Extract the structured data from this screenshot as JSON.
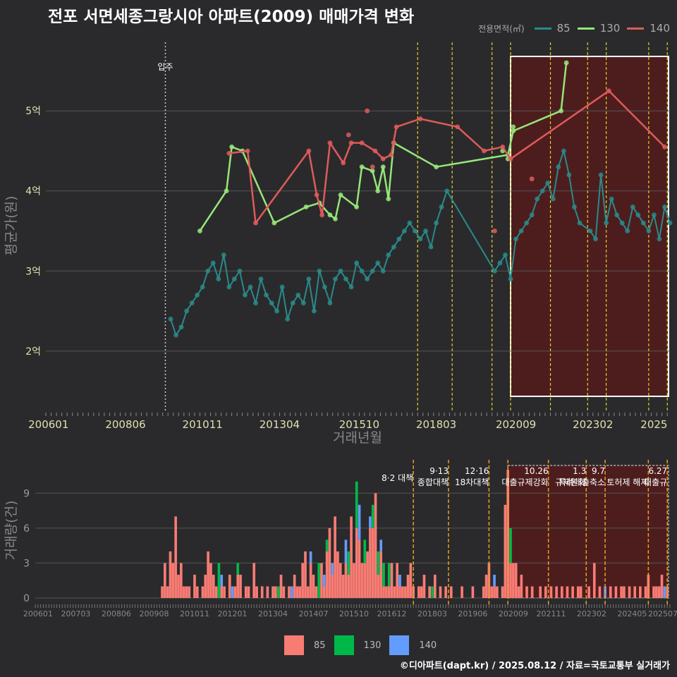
{
  "header": {
    "title": "전포 서면세종그랑시아 아파트(2009) 매매가격 변화",
    "legend_label": "전용면적(㎡)",
    "footer": "©디아파트(dapt.kr) / 2025.08.12 / 자료=국토교통부 실거래가"
  },
  "colors": {
    "bg": "#2a2a2c",
    "s85_line": "#2a8a8a",
    "s130_line": "#96e67a",
    "s140_line": "#e05a5a",
    "bar85": "#f87c74",
    "bar130": "#00b84a",
    "bar140": "#639cff",
    "highlight": "#5a1a1a",
    "vline": "#e0d02a"
  },
  "chart_data": [
    {
      "type": "line",
      "title": "전포 서면세종그랑시아 아파트(2009) 매매가격 변화",
      "xlabel": "거래년월",
      "ylabel": "평균가(원)",
      "x_range": [
        "2005-12",
        "2025-07"
      ],
      "ylim": [
        1.25,
        5.9
      ],
      "yticks": [
        {
          "v": 2,
          "label": "2억"
        },
        {
          "v": 3,
          "label": "3억"
        },
        {
          "v": 4,
          "label": "4억"
        },
        {
          "v": 5,
          "label": "5억"
        }
      ],
      "xticks": [
        "200601",
        "200806",
        "201011",
        "201304",
        "201510",
        "201803",
        "202009",
        "202302",
        "2025"
      ],
      "move_in": {
        "date": "2009-09",
        "label": "입주"
      },
      "policy_lines": [
        "2017-08",
        "2018-09",
        "2019-12",
        "2020-07",
        "2021-10",
        "2022-12",
        "2023-07",
        "2024-11",
        "2025-06"
      ],
      "highlight": {
        "from": "2020-07",
        "to": "2025-07"
      },
      "legend": [
        "85",
        "130",
        "140"
      ],
      "series": [
        {
          "name": "85",
          "line": [
            [
              "2009-11",
              2.4
            ],
            [
              "2010-01",
              2.2
            ],
            [
              "2010-03",
              2.3
            ],
            [
              "2010-05",
              2.5
            ],
            [
              "2010-07",
              2.6
            ],
            [
              "2010-09",
              2.7
            ],
            [
              "2010-11",
              2.8
            ],
            [
              "2011-01",
              3.0
            ],
            [
              "2011-03",
              3.1
            ],
            [
              "2011-05",
              2.9
            ],
            [
              "2011-07",
              3.2
            ],
            [
              "2011-09",
              2.8
            ],
            [
              "2011-11",
              2.9
            ],
            [
              "2012-01",
              3.0
            ],
            [
              "2012-03",
              2.7
            ],
            [
              "2012-05",
              2.8
            ],
            [
              "2012-07",
              2.6
            ],
            [
              "2012-09",
              2.9
            ],
            [
              "2012-11",
              2.7
            ],
            [
              "2013-01",
              2.6
            ],
            [
              "2013-03",
              2.5
            ],
            [
              "2013-05",
              2.8
            ],
            [
              "2013-07",
              2.4
            ],
            [
              "2013-09",
              2.6
            ],
            [
              "2013-11",
              2.7
            ],
            [
              "2014-01",
              2.6
            ],
            [
              "2014-03",
              2.9
            ],
            [
              "2014-05",
              2.5
            ],
            [
              "2014-07",
              3.0
            ],
            [
              "2014-09",
              2.8
            ],
            [
              "2014-11",
              2.6
            ],
            [
              "2015-01",
              2.9
            ],
            [
              "2015-03",
              3.0
            ],
            [
              "2015-05",
              2.9
            ],
            [
              "2015-07",
              2.8
            ],
            [
              "2015-09",
              3.1
            ],
            [
              "2015-11",
              3.0
            ],
            [
              "2016-01",
              2.9
            ],
            [
              "2016-03",
              3.0
            ],
            [
              "2016-05",
              3.1
            ],
            [
              "2016-07",
              3.0
            ],
            [
              "2016-09",
              3.2
            ],
            [
              "2016-11",
              3.3
            ],
            [
              "2017-01",
              3.4
            ],
            [
              "2017-03",
              3.5
            ],
            [
              "2017-05",
              3.6
            ],
            [
              "2017-07",
              3.5
            ],
            [
              "2017-09",
              3.4
            ],
            [
              "2017-11",
              3.5
            ],
            [
              "2018-01",
              3.3
            ],
            [
              "2018-03",
              3.6
            ],
            [
              "2018-05",
              3.8
            ],
            [
              "2018-07",
              4.0
            ],
            [
              "2020-01",
              3.0
            ],
            [
              "2020-03",
              3.1
            ],
            [
              "2020-05",
              3.2
            ],
            [
              "2020-07",
              2.9
            ],
            [
              "2020-09",
              3.4
            ],
            [
              "2020-11",
              3.5
            ],
            [
              "2021-01",
              3.6
            ],
            [
              "2021-03",
              3.7
            ],
            [
              "2021-05",
              3.9
            ],
            [
              "2021-07",
              4.0
            ],
            [
              "2021-09",
              4.1
            ],
            [
              "2021-11",
              3.9
            ],
            [
              "2022-01",
              4.3
            ],
            [
              "2022-03",
              4.5
            ],
            [
              "2022-05",
              4.2
            ],
            [
              "2022-07",
              3.8
            ],
            [
              "2022-09",
              3.6
            ],
            [
              "2023-01",
              3.5
            ],
            [
              "2023-03",
              3.4
            ],
            [
              "2023-05",
              4.2
            ],
            [
              "2023-07",
              3.6
            ],
            [
              "2023-09",
              3.9
            ],
            [
              "2023-11",
              3.7
            ],
            [
              "2024-01",
              3.6
            ],
            [
              "2024-03",
              3.5
            ],
            [
              "2024-05",
              3.8
            ],
            [
              "2024-07",
              3.7
            ],
            [
              "2024-09",
              3.6
            ],
            [
              "2024-11",
              3.5
            ],
            [
              "2025-01",
              3.7
            ],
            [
              "2025-03",
              3.4
            ],
            [
              "2025-05",
              3.8
            ],
            [
              "2025-07",
              3.6
            ]
          ]
        },
        {
          "name": "130",
          "line": [
            [
              "2010-10",
              3.5
            ],
            [
              "2011-08",
              4.0
            ],
            [
              "2011-10",
              4.55
            ],
            [
              "2012-02",
              4.5
            ],
            [
              "2013-02",
              3.6
            ],
            [
              "2014-02",
              3.8
            ],
            [
              "2014-07",
              3.85
            ],
            [
              "2014-11",
              3.7
            ],
            [
              "2015-01",
              3.65
            ],
            [
              "2015-03",
              3.95
            ],
            [
              "2015-09",
              3.8
            ],
            [
              "2015-11",
              4.3
            ],
            [
              "2016-03",
              4.25
            ],
            [
              "2016-05",
              4.0
            ],
            [
              "2016-07",
              4.3
            ],
            [
              "2016-09",
              3.9
            ],
            [
              "2016-11",
              4.6
            ],
            [
              "2018-03",
              4.3
            ],
            [
              "2020-06",
              4.45
            ],
            [
              "2020-08",
              4.75
            ],
            [
              "2022-02",
              5.0
            ],
            [
              "2022-04",
              5.6
            ]
          ],
          "points": [
            [
              "2020-06",
              4.4
            ],
            [
              "2020-08",
              4.8
            ],
            [
              "2020-04",
              4.5
            ]
          ]
        },
        {
          "name": "140",
          "line": [
            [
              "2011-09",
              4.47
            ],
            [
              "2012-04",
              4.5
            ],
            [
              "2012-07",
              3.6
            ],
            [
              "2014-03",
              4.5
            ],
            [
              "2014-06",
              3.95
            ],
            [
              "2014-08",
              3.7
            ],
            [
              "2014-11",
              4.6
            ],
            [
              "2015-04",
              4.35
            ],
            [
              "2015-07",
              4.6
            ],
            [
              "2015-11",
              4.6
            ],
            [
              "2016-04",
              4.5
            ],
            [
              "2016-07",
              4.4
            ],
            [
              "2016-10",
              4.45
            ],
            [
              "2016-12",
              4.8
            ],
            [
              "2017-09",
              4.9
            ],
            [
              "2018-11",
              4.8
            ],
            [
              "2019-09",
              4.5
            ],
            [
              "2020-04",
              4.55
            ],
            [
              "2020-07",
              4.4
            ],
            [
              "2023-08",
              5.25
            ],
            [
              "2025-05",
              4.55
            ]
          ],
          "points": [
            [
              "2016-01",
              5.0
            ],
            [
              "2015-06",
              4.7
            ],
            [
              "2016-11",
              4.6
            ],
            [
              "2016-03",
              4.3
            ],
            [
              "2021-03",
              4.15
            ],
            [
              "2020-01",
              3.5
            ]
          ]
        }
      ]
    },
    {
      "type": "bar",
      "xlabel": "",
      "ylabel": "거래량(건)",
      "x_range": [
        "2005-12",
        "2025-07"
      ],
      "ylim": [
        0,
        11.5
      ],
      "yticks": [
        0,
        3,
        6,
        9
      ],
      "xticks": [
        "200601",
        "200703",
        "200806",
        "200908",
        "201011",
        "201201",
        "201304",
        "201407",
        "201510",
        "201612",
        "201803",
        "201906",
        "202009",
        "202111",
        "202302",
        "202405",
        "202507"
      ],
      "series_names": [
        "85",
        "130",
        "140"
      ],
      "policy_lines": [
        "2017-08",
        "2018-09",
        "2019-12",
        "2020-07",
        "2021-10",
        "2022-12",
        "2023-07",
        "2024-11",
        "2025-06"
      ],
      "highlight": {
        "from": "2020-07",
        "to": "2025-07"
      },
      "annotations": [
        {
          "date": "2017-08",
          "lines": [
            "8·2 대책"
          ]
        },
        {
          "date": "2018-09",
          "lines": [
            "9·13",
            "종합대책"
          ]
        },
        {
          "date": "2019-12",
          "lines": [
            "12·16",
            "18차대책"
          ]
        },
        {
          "date": "2021-10",
          "lines": [
            "10.26",
            "대출규제강화"
          ]
        },
        {
          "date": "2022-12",
          "lines": [
            "1.3",
            "규제완화"
          ]
        },
        {
          "date": "2023-07",
          "lines": [
            "9.7",
            "특례대출축소"
          ]
        },
        {
          "date": "2024-11",
          "lines": [
            "",
            "토허제 해제"
          ]
        },
        {
          "date": "2025-06",
          "lines": [
            "6.27",
            "대출규"
          ]
        }
      ],
      "bars_total": {
        "2009-11": 1,
        "2009-12": 3,
        "2010-01": 1,
        "2010-02": 4,
        "2010-03": 3,
        "2010-04": 7,
        "2010-05": 2,
        "2010-06": 3,
        "2010-07": 1,
        "2010-08": 1,
        "2010-09": 1,
        "2010-11": 2,
        "2010-12": 1,
        "2011-02": 1,
        "2011-03": 2,
        "2011-04": 4,
        "2011-05": 3,
        "2011-06": 2,
        "2011-07": 1,
        "2011-08": 3,
        "2011-09": 2,
        "2011-10": 1,
        "2011-12": 2,
        "2012-01": 1,
        "2012-02": 1,
        "2012-03": 3,
        "2012-04": 2,
        "2012-06": 1,
        "2012-07": 1,
        "2012-09": 3,
        "2012-10": 1,
        "2012-12": 1,
        "2013-02": 1,
        "2013-04": 1,
        "2013-05": 1,
        "2013-06": 1,
        "2013-07": 2,
        "2013-08": 1,
        "2013-10": 1,
        "2013-11": 1,
        "2013-12": 2,
        "2014-01": 1,
        "2014-02": 1,
        "2014-03": 3,
        "2014-04": 4,
        "2014-05": 1,
        "2014-06": 4,
        "2014-07": 2,
        "2014-08": 1,
        "2014-09": 3,
        "2014-10": 3,
        "2014-11": 2,
        "2014-12": 5,
        "2015-01": 6,
        "2015-02": 3,
        "2015-03": 7,
        "2015-04": 4,
        "2015-05": 3,
        "2015-06": 2,
        "2015-07": 5,
        "2015-08": 4,
        "2015-09": 7,
        "2015-10": 3,
        "2015-11": 10,
        "2015-12": 8,
        "2016-01": 3,
        "2016-02": 5,
        "2016-03": 4,
        "2016-04": 7,
        "2016-05": 8,
        "2016-06": 9,
        "2016-07": 4,
        "2016-08": 5,
        "2016-09": 3,
        "2016-10": 1,
        "2016-11": 3,
        "2016-12": 3,
        "2017-01": 1,
        "2017-02": 3,
        "2017-03": 2,
        "2017-04": 1,
        "2017-05": 1,
        "2017-06": 2,
        "2017-07": 3,
        "2017-08": 1,
        "2017-10": 1,
        "2017-11": 1,
        "2017-12": 2,
        "2018-02": 1,
        "2018-03": 1,
        "2018-04": 2,
        "2018-06": 1,
        "2018-08": 1,
        "2018-10": 1,
        "2019-02": 1,
        "2019-06": 1,
        "2019-10": 1,
        "2019-11": 2,
        "2019-12": 3,
        "2020-01": 1,
        "2020-02": 2,
        "2020-03": 1,
        "2020-05": 1,
        "2020-06": 8,
        "2020-07": 11,
        "2020-08": 6,
        "2020-09": 3,
        "2020-10": 3,
        "2020-11": 1,
        "2020-12": 2,
        "2021-02": 1,
        "2021-04": 1,
        "2021-07": 1,
        "2021-09": 1,
        "2021-11": 1,
        "2022-01": 1,
        "2022-03": 1,
        "2022-05": 1,
        "2022-07": 1,
        "2022-09": 1,
        "2022-10": 1,
        "2023-01": 1,
        "2023-03": 3,
        "2023-05": 1,
        "2023-07": 1,
        "2023-09": 1,
        "2023-11": 1,
        "2024-01": 1,
        "2024-02": 1,
        "2024-04": 1,
        "2024-06": 1,
        "2024-08": 1,
        "2024-10": 1,
        "2024-11": 2,
        "2025-01": 1,
        "2025-02": 1,
        "2025-03": 1,
        "2025-04": 2,
        "2025-05": 1,
        "2025-06": 1
      },
      "bars_130": {
        "2011-08": 3,
        "2012-03": 1,
        "2013-06": 1,
        "2014-09": 3,
        "2014-12": 1,
        "2015-08": 2,
        "2015-11": 4,
        "2016-02": 2,
        "2016-05": 2,
        "2016-07": 2,
        "2016-09": 2,
        "2016-11": 2,
        "2018-03": 1,
        "2020-08": 3,
        "2022-02": 1
      },
      "bars_140": {
        "2011-09": 1,
        "2012-01": 1,
        "2013-11": 1,
        "2014-06": 1,
        "2014-11": 1,
        "2015-02": 1,
        "2015-07": 2,
        "2015-12": 3,
        "2016-04": 1,
        "2016-08": 1,
        "2017-03": 1,
        "2018-01": 1,
        "2018-05": 1,
        "2018-11": 1,
        "2020-02": 1,
        "2022-06": 1,
        "2023-07": 1,
        "2025-05": 1
      }
    }
  ]
}
